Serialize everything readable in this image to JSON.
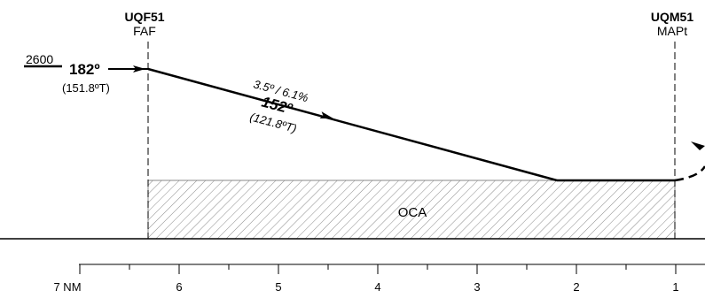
{
  "fixes": [
    {
      "name": "UQF51",
      "role": "FAF"
    },
    {
      "name": "UQM51",
      "role": "MAPt"
    }
  ],
  "entry": {
    "altitude": "2600",
    "course_mag": "182º",
    "course_true": "(151.8ºT)"
  },
  "final": {
    "gradient": "3.5º / 6.1%",
    "course_mag": "152º",
    "course_true": "(121.8ºT)"
  },
  "oca_label": "OCA",
  "distance_scale": {
    "unit_label": "7 NM",
    "labels": [
      "6",
      "5",
      "4",
      "3",
      "2",
      "1"
    ]
  }
}
